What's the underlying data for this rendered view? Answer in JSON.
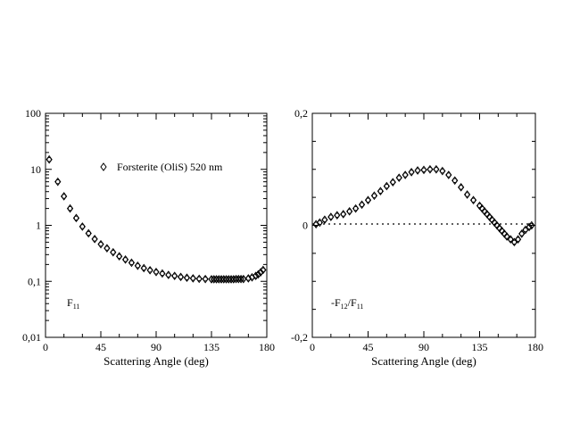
{
  "chart_data": [
    {
      "type": "scatter",
      "xscale": "linear",
      "yscale": "log",
      "xlim": [
        0,
        180
      ],
      "ylim": [
        0.01,
        100
      ],
      "xticks": [
        0,
        45,
        90,
        135,
        180
      ],
      "xtick_labels": [
        "0",
        "45",
        "90",
        "135",
        "180"
      ],
      "yticks": [
        0.01,
        0.1,
        1,
        10,
        100
      ],
      "ytick_labels": [
        "0,01",
        "0,1",
        "1",
        "10",
        "100"
      ],
      "xlabel": "Scattering Angle (deg)",
      "ylabel": "",
      "grid": false,
      "panel_label": {
        "main": "F",
        "sub": "11"
      },
      "legend": {
        "entries": [
          "Forsterite (OliS)  520 nm"
        ],
        "placement": "upper-center"
      },
      "series": [
        {
          "name": "Forsterite (OliS)  520 nm",
          "marker": "diamond",
          "x": [
            3,
            10,
            15,
            20,
            25,
            30,
            35,
            40,
            45,
            50,
            55,
            60,
            65,
            70,
            75,
            80,
            85,
            90,
            95,
            100,
            105,
            110,
            115,
            120,
            125,
            130,
            135,
            137,
            139,
            141,
            143,
            145,
            147,
            149,
            151,
            153,
            155,
            157,
            159,
            161,
            165,
            168,
            171,
            173,
            175,
            177
          ],
          "y": [
            15,
            6,
            3.3,
            2.0,
            1.35,
            0.95,
            0.72,
            0.57,
            0.46,
            0.39,
            0.33,
            0.28,
            0.245,
            0.215,
            0.19,
            0.172,
            0.158,
            0.147,
            0.138,
            0.13,
            0.125,
            0.12,
            0.116,
            0.113,
            0.111,
            0.11,
            0.109,
            0.109,
            0.109,
            0.109,
            0.109,
            0.109,
            0.109,
            0.109,
            0.109,
            0.109,
            0.11,
            0.11,
            0.11,
            0.11,
            0.113,
            0.118,
            0.125,
            0.133,
            0.145,
            0.16
          ]
        }
      ]
    },
    {
      "type": "scatter",
      "xscale": "linear",
      "yscale": "linear",
      "xlim": [
        0,
        180
      ],
      "ylim": [
        -0.2,
        0.2
      ],
      "xticks": [
        0,
        45,
        90,
        135,
        180
      ],
      "xtick_labels": [
        "0",
        "45",
        "90",
        "135",
        "180"
      ],
      "yticks": [
        -0.2,
        0,
        0.2
      ],
      "ytick_labels": [
        "-0,2",
        "0",
        "0,2"
      ],
      "xlabel": "Scattering Angle (deg)",
      "ylabel": "",
      "grid": false,
      "zero_line": true,
      "panel_label": {
        "pre": "-F",
        "sub1": "12",
        "mid": "/F",
        "sub2": "11"
      },
      "series": [
        {
          "name": "",
          "marker": "diamond",
          "x": [
            3,
            6,
            10,
            15,
            20,
            25,
            30,
            35,
            40,
            45,
            50,
            55,
            60,
            65,
            70,
            75,
            80,
            85,
            90,
            95,
            100,
            105,
            110,
            115,
            120,
            125,
            130,
            135,
            137,
            139,
            141,
            143,
            145,
            147,
            149,
            151,
            153,
            155,
            157,
            160,
            163,
            166,
            169,
            172,
            175,
            177
          ],
          "y": [
            0.002,
            0.005,
            0.01,
            0.015,
            0.018,
            0.02,
            0.025,
            0.03,
            0.037,
            0.045,
            0.053,
            0.061,
            0.07,
            0.077,
            0.085,
            0.09,
            0.095,
            0.098,
            0.099,
            0.1,
            0.1,
            0.097,
            0.09,
            0.08,
            0.068,
            0.055,
            0.045,
            0.035,
            0.03,
            0.025,
            0.02,
            0.015,
            0.01,
            0.005,
            0.0,
            -0.005,
            -0.01,
            -0.015,
            -0.02,
            -0.025,
            -0.03,
            -0.025,
            -0.015,
            -0.008,
            -0.003,
            0.0
          ]
        }
      ]
    }
  ]
}
